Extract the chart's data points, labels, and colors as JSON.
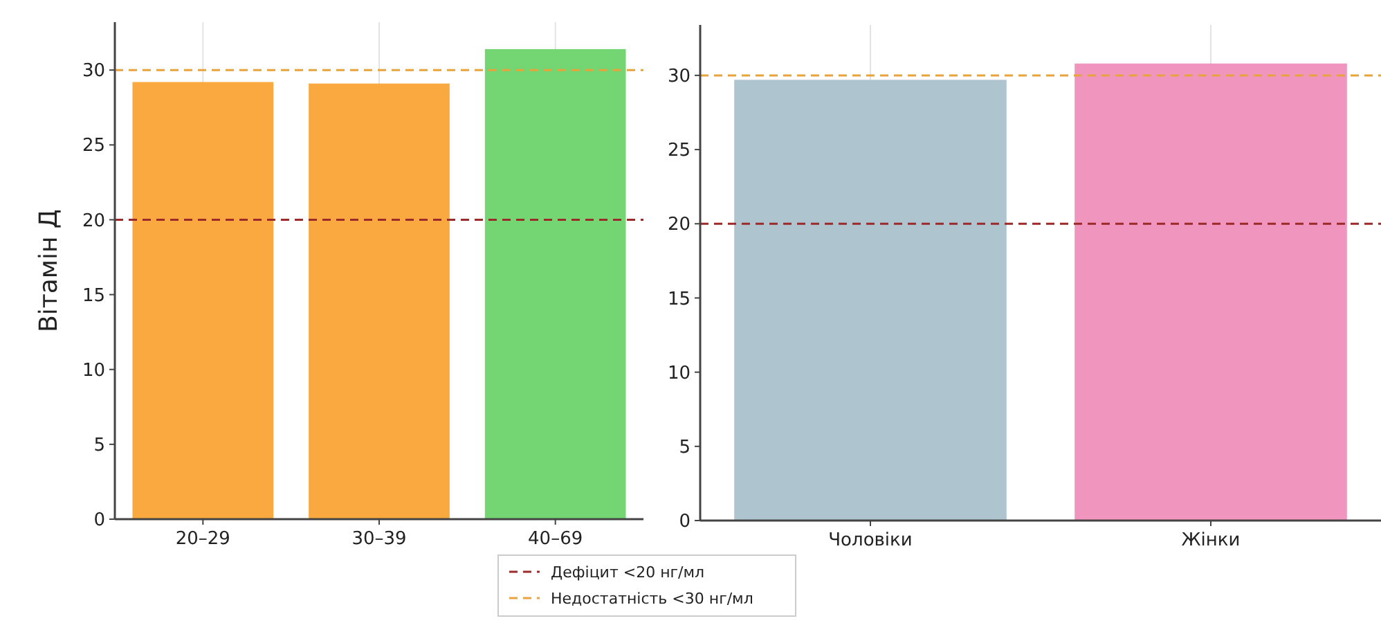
{
  "chart_data": [
    {
      "type": "bar",
      "ylabel": "Вітамін Д",
      "categories": [
        "20–29",
        "30–39",
        "40–69"
      ],
      "values": [
        29.2,
        29.1,
        31.4
      ],
      "colors": [
        "#f9a93f",
        "#f9a93f",
        "#73d672"
      ],
      "ylim": [
        0,
        33.2
      ],
      "yticks": [
        0,
        5,
        10,
        15,
        20,
        25,
        30
      ],
      "grid": "x",
      "legend": "bottom",
      "ref_lines": [
        {
          "axis": "y",
          "value": 20,
          "label": "Дефіцит <20 нг/мл",
          "color": "#9b2a2a",
          "line_style": "dashed"
        },
        {
          "axis": "y",
          "value": 30,
          "label": "Недостатність <30 нг/мл",
          "color": "#e8a33d",
          "line_style": "dashed"
        }
      ]
    },
    {
      "type": "bar",
      "categories": [
        "Чоловіки",
        "Жінки"
      ],
      "values": [
        29.7,
        30.8
      ],
      "colors": [
        "#aec4cf",
        "#f096be"
      ],
      "ylim": [
        0,
        33.4
      ],
      "yticks": [
        0,
        5,
        10,
        15,
        20,
        25,
        30
      ],
      "grid": "x",
      "ref_lines": [
        {
          "axis": "y",
          "value": 20,
          "color": "#9b2a2a",
          "line_style": "dashed"
        },
        {
          "axis": "y",
          "value": 30,
          "color": "#e8a33d",
          "line_style": "dashed"
        }
      ]
    }
  ]
}
